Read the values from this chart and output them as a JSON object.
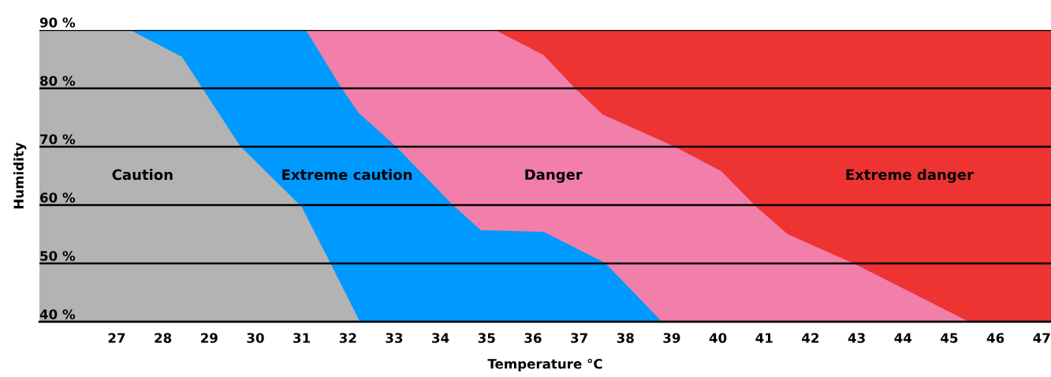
{
  "chart_data": {
    "type": "area",
    "xlabel": "Temperature °C",
    "ylabel": "Humidity",
    "xlim": [
      25.33,
      47.2
    ],
    "xticks": [
      27,
      28,
      29,
      30,
      31,
      32,
      33,
      34,
      35,
      36,
      37,
      38,
      39,
      40,
      41,
      42,
      43,
      44,
      45,
      46,
      47
    ],
    "ylim": [
      40,
      90
    ],
    "yticks": [
      {
        "value": 40,
        "label": "40 %"
      },
      {
        "value": 50,
        "label": "50 %"
      },
      {
        "value": 60,
        "label": "60 %"
      },
      {
        "value": 70,
        "label": "70 %"
      },
      {
        "value": 80,
        "label": "80 %"
      },
      {
        "value": 90,
        "label": "90 %"
      }
    ],
    "grid": "y",
    "series": [
      {
        "name": "Extreme danger",
        "color": "#ee3333",
        "x": [
          35.18,
          47.2
        ],
        "values": [
          90,
          90
        ]
      },
      {
        "name": "Danger",
        "color": "#f17fa9",
        "x": [
          31.09,
          35.18,
          36.23,
          36.91,
          37.51,
          39.04,
          40.07,
          40.83,
          41.51,
          42.96,
          45.43
        ],
        "values": [
          90,
          90,
          85.7,
          80,
          75.5,
          70.1,
          65.8,
          59.7,
          55,
          49.9,
          40
        ]
      },
      {
        "name": "Extreme caution",
        "color": "#0099ff",
        "x": [
          27.29,
          31.09,
          31.84,
          32.23,
          33.03,
          34.27,
          34.87,
          36.23,
          37.56,
          38.79
        ],
        "values": [
          90,
          90,
          80.3,
          75.8,
          70.1,
          60,
          55.7,
          55.4,
          50.1,
          40
        ]
      },
      {
        "name": "Caution",
        "color": "#b3b3b3",
        "x": [
          25.33,
          27.29,
          28.41,
          29.67,
          31.0,
          31.63,
          32.26
        ],
        "values": [
          90,
          90,
          85.4,
          70.1,
          59.7,
          49.9,
          40
        ]
      }
    ]
  }
}
